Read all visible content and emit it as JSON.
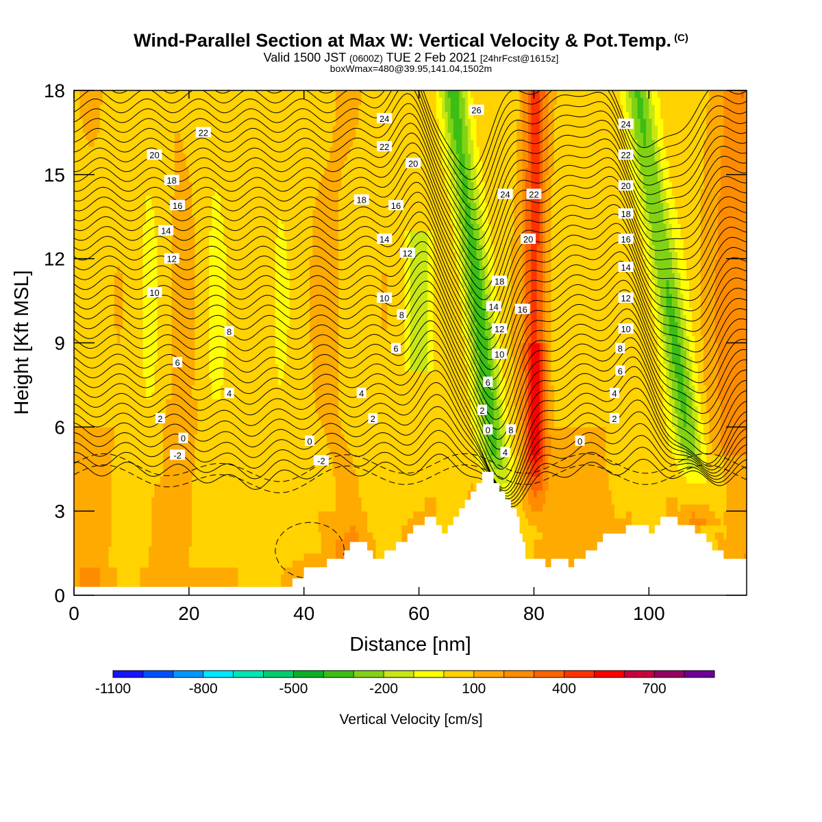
{
  "header": {
    "title": "Wind-Parallel Section at Max W: Vertical Velocity & Pot.Temp.",
    "copyright": "(C)",
    "valid_prefix": "Valid 1500 JST",
    "valid_utc": "(0600Z)",
    "valid_date": "TUE 2 Feb 2021",
    "forecast": "[24hrFcst@1615z]",
    "boxinfo": "boxWmax=480@39.95,141.04,1502m"
  },
  "chart_data": {
    "type": "heatmap",
    "title": "Wind-Parallel Section at Max W: Vertical Velocity & Pot.Temp.",
    "xlabel": "Distance [nm]",
    "ylabel": "Height [Kft MSL]",
    "xlim": [
      0,
      117
    ],
    "ylim": [
      0,
      18
    ],
    "x_ticks": [
      0,
      20,
      40,
      60,
      80,
      100
    ],
    "y_ticks": [
      0,
      3,
      6,
      9,
      12,
      15,
      18
    ],
    "colorbar": {
      "label": "Vertical Velocity [cm/s]",
      "tick_labels": [
        "-1100",
        "-800",
        "-500",
        "-200",
        "100",
        "400",
        "700"
      ],
      "levels": [
        -1100,
        -1000,
        -900,
        -800,
        -700,
        -600,
        -500,
        -400,
        -300,
        -200,
        -100,
        0,
        100,
        200,
        300,
        400,
        500,
        600,
        700,
        800
      ],
      "colors": [
        "#1414ff",
        "#0050ff",
        "#0096ff",
        "#00e6ff",
        "#00e6b4",
        "#00cd6e",
        "#0aaf28",
        "#3cbe14",
        "#82d214",
        "#c8e614",
        "#ffff00",
        "#ffd200",
        "#ffaa00",
        "#ff8c00",
        "#ff6400",
        "#ff3200",
        "#ff0000",
        "#c8003c",
        "#960064",
        "#6e0096"
      ]
    },
    "contour_variable": "potential temperature (C)",
    "contour_levels": [
      -2,
      0,
      2,
      4,
      6,
      8,
      10,
      12,
      14,
      16,
      18,
      20,
      22,
      24,
      26
    ],
    "contour_labels": [
      {
        "x": 22.5,
        "y": 16.5,
        "text": "22"
      },
      {
        "x": 14,
        "y": 15.7,
        "text": "20"
      },
      {
        "x": 17,
        "y": 14.8,
        "text": "18"
      },
      {
        "x": 18,
        "y": 13.9,
        "text": "16"
      },
      {
        "x": 16,
        "y": 13.0,
        "text": "14"
      },
      {
        "x": 17,
        "y": 12.0,
        "text": "12"
      },
      {
        "x": 14,
        "y": 10.8,
        "text": "10"
      },
      {
        "x": 27,
        "y": 9.4,
        "text": "8"
      },
      {
        "x": 18,
        "y": 8.3,
        "text": "6"
      },
      {
        "x": 27,
        "y": 7.2,
        "text": "4"
      },
      {
        "x": 15,
        "y": 6.3,
        "text": "2"
      },
      {
        "x": 19,
        "y": 5.6,
        "text": "0"
      },
      {
        "x": 18,
        "y": 5.0,
        "text": "-2"
      },
      {
        "x": 54,
        "y": 17.0,
        "text": "24"
      },
      {
        "x": 54,
        "y": 16.0,
        "text": "22"
      },
      {
        "x": 59,
        "y": 15.4,
        "text": "20"
      },
      {
        "x": 50,
        "y": 14.1,
        "text": "18"
      },
      {
        "x": 56,
        "y": 13.9,
        "text": "16"
      },
      {
        "x": 54,
        "y": 12.7,
        "text": "14"
      },
      {
        "x": 58,
        "y": 12.2,
        "text": "12"
      },
      {
        "x": 54,
        "y": 10.6,
        "text": "10"
      },
      {
        "x": 57,
        "y": 10.0,
        "text": "8"
      },
      {
        "x": 56,
        "y": 8.8,
        "text": "6"
      },
      {
        "x": 50,
        "y": 7.2,
        "text": "4"
      },
      {
        "x": 52,
        "y": 6.3,
        "text": "2"
      },
      {
        "x": 41,
        "y": 5.5,
        "text": "0"
      },
      {
        "x": 43,
        "y": 4.8,
        "text": "-2"
      },
      {
        "x": 70,
        "y": 17.3,
        "text": "26"
      },
      {
        "x": 75,
        "y": 14.3,
        "text": "24"
      },
      {
        "x": 80,
        "y": 14.3,
        "text": "22"
      },
      {
        "x": 79,
        "y": 12.7,
        "text": "20"
      },
      {
        "x": 74,
        "y": 11.2,
        "text": "18"
      },
      {
        "x": 78,
        "y": 10.2,
        "text": "16"
      },
      {
        "x": 73,
        "y": 10.3,
        "text": "14"
      },
      {
        "x": 74,
        "y": 9.5,
        "text": "12"
      },
      {
        "x": 74,
        "y": 8.6,
        "text": "10"
      },
      {
        "x": 72,
        "y": 7.6,
        "text": "6"
      },
      {
        "x": 71,
        "y": 6.6,
        "text": "2"
      },
      {
        "x": 72,
        "y": 5.9,
        "text": "0"
      },
      {
        "x": 76,
        "y": 5.9,
        "text": "8"
      },
      {
        "x": 75,
        "y": 5.1,
        "text": "4"
      },
      {
        "x": 96,
        "y": 16.8,
        "text": "24"
      },
      {
        "x": 96,
        "y": 15.7,
        "text": "22"
      },
      {
        "x": 96,
        "y": 14.6,
        "text": "20"
      },
      {
        "x": 96,
        "y": 13.6,
        "text": "18"
      },
      {
        "x": 96,
        "y": 12.7,
        "text": "16"
      },
      {
        "x": 96,
        "y": 11.7,
        "text": "14"
      },
      {
        "x": 96,
        "y": 10.6,
        "text": "12"
      },
      {
        "x": 96,
        "y": 9.5,
        "text": "10"
      },
      {
        "x": 95,
        "y": 8.8,
        "text": "8"
      },
      {
        "x": 95,
        "y": 8.0,
        "text": "6"
      },
      {
        "x": 94,
        "y": 7.2,
        "text": "4"
      },
      {
        "x": 94,
        "y": 6.3,
        "text": "2"
      },
      {
        "x": 88,
        "y": 5.5,
        "text": "0"
      }
    ],
    "terrain_kft": [
      [
        0,
        0.3
      ],
      [
        38,
        0.3
      ],
      [
        38,
        0.6
      ],
      [
        40,
        0.6
      ],
      [
        40,
        1.0
      ],
      [
        44,
        1.0
      ],
      [
        44,
        1.3
      ],
      [
        47,
        1.3
      ],
      [
        47,
        1.6
      ],
      [
        48,
        1.6
      ],
      [
        48,
        1.9
      ],
      [
        51,
        1.9
      ],
      [
        51,
        1.6
      ],
      [
        52,
        1.6
      ],
      [
        52,
        1.3
      ],
      [
        54,
        1.3
      ],
      [
        54,
        1.6
      ],
      [
        56,
        1.6
      ],
      [
        56,
        1.9
      ],
      [
        58,
        1.9
      ],
      [
        58,
        2.2
      ],
      [
        59,
        2.2
      ],
      [
        59,
        2.5
      ],
      [
        61,
        2.5
      ],
      [
        61,
        2.8
      ],
      [
        63,
        2.8
      ],
      [
        63,
        2.5
      ],
      [
        64,
        2.5
      ],
      [
        64,
        2.2
      ],
      [
        65,
        2.2
      ],
      [
        65,
        2.5
      ],
      [
        66,
        2.5
      ],
      [
        66,
        2.8
      ],
      [
        67,
        2.8
      ],
      [
        67,
        3.1
      ],
      [
        68,
        3.1
      ],
      [
        68,
        3.4
      ],
      [
        69,
        3.4
      ],
      [
        69,
        3.7
      ],
      [
        70,
        3.7
      ],
      [
        70,
        4.0
      ],
      [
        71,
        4.0
      ],
      [
        71,
        4.4
      ],
      [
        73,
        4.4
      ],
      [
        73,
        4.0
      ],
      [
        74,
        4.0
      ],
      [
        74,
        3.7
      ],
      [
        75,
        3.7
      ],
      [
        75,
        3.4
      ],
      [
        76,
        3.4
      ],
      [
        76,
        3.1
      ],
      [
        77,
        3.1
      ],
      [
        77,
        2.8
      ],
      [
        77.5,
        2.8
      ],
      [
        77.5,
        2.2
      ],
      [
        78,
        2.2
      ],
      [
        78,
        1.9
      ],
      [
        78.5,
        1.9
      ],
      [
        78.5,
        1.3
      ],
      [
        82,
        1.3
      ],
      [
        82,
        1.0
      ],
      [
        83,
        1.0
      ],
      [
        83,
        1.3
      ],
      [
        86,
        1.3
      ],
      [
        86,
        1.0
      ],
      [
        87,
        1.0
      ],
      [
        87,
        1.3
      ],
      [
        89,
        1.3
      ],
      [
        89,
        1.6
      ],
      [
        91,
        1.6
      ],
      [
        91,
        1.9
      ],
      [
        92,
        1.9
      ],
      [
        92,
        2.2
      ],
      [
        96,
        2.2
      ],
      [
        96,
        2.5
      ],
      [
        100,
        2.5
      ],
      [
        100,
        2.2
      ],
      [
        101,
        2.2
      ],
      [
        101,
        2.5
      ],
      [
        102,
        2.5
      ],
      [
        102,
        2.8
      ],
      [
        105,
        2.8
      ],
      [
        105,
        2.5
      ],
      [
        108,
        2.5
      ],
      [
        108,
        2.2
      ],
      [
        110,
        2.2
      ],
      [
        110,
        1.9
      ],
      [
        111,
        1.9
      ],
      [
        111,
        1.6
      ],
      [
        113,
        1.6
      ],
      [
        113,
        1.3
      ],
      [
        117,
        1.3
      ]
    ],
    "vertical_velocity_features": [
      {
        "kind": "downdraft",
        "from": [
          66,
          18
        ],
        "to": [
          74,
          3.5
        ],
        "min_cms": -500
      },
      {
        "kind": "updraft",
        "from": [
          79.5,
          18
        ],
        "to": [
          80,
          3.0
        ],
        "max_cms": 480
      },
      {
        "kind": "downdraft",
        "from": [
          98,
          18
        ],
        "to": [
          108,
          4.0
        ],
        "min_cms": -500
      },
      {
        "kind": "updraft",
        "from": [
          115,
          18
        ],
        "to": [
          116,
          6.0
        ],
        "max_cms": 300
      }
    ]
  }
}
